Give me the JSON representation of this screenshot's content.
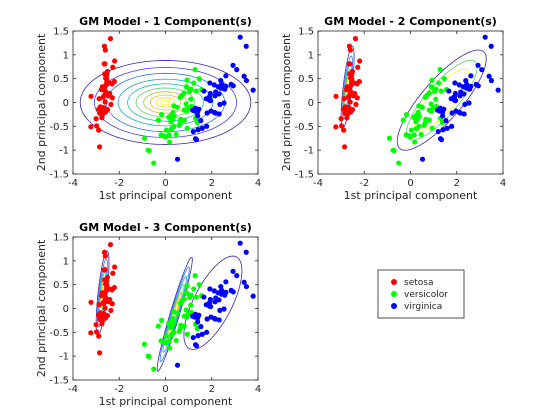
{
  "colors": {
    "setosa": "#ff0000",
    "versicolor": "#00ff00",
    "virginica": "#0000ff",
    "contours": [
      "#3e26a8",
      "#4743f2",
      "#2f77fb",
      "#1ba4e0",
      "#1ec2a5",
      "#62cc6b",
      "#b8c03a",
      "#f2b83b",
      "#f5d82b",
      "#f9fb15"
    ]
  },
  "chart_data": [
    {
      "type": "scatter",
      "title": "GM Model - 1 Component(s)",
      "xlabel": "1st principal component",
      "ylabel": "2nd principal component",
      "xlim": [
        -4,
        4
      ],
      "ylim": [
        -1.5,
        1.5
      ],
      "xticks": [
        "-4",
        "-2",
        "0",
        "2",
        "4"
      ],
      "yticks": [
        "-1.5",
        "-1",
        "-0.5",
        "0",
        "0.5",
        "1",
        "1.5"
      ],
      "components": [
        {
          "center": [
            0,
            0
          ],
          "sx": 2.05,
          "sy": 0.49,
          "angle": 0,
          "levels": [
            1.8,
            1.5,
            1.25,
            1.0,
            0.8,
            0.62,
            0.46,
            0.32,
            0.2,
            0.1
          ]
        }
      ]
    },
    {
      "type": "scatter",
      "title": "GM Model - 2 Component(s)",
      "xlabel": "1st principal component",
      "ylabel": "2nd principal component",
      "xlim": [
        -4,
        4
      ],
      "ylim": [
        -1.5,
        1.5
      ],
      "xticks": [
        "-4",
        "-2",
        "0",
        "2",
        "4"
      ],
      "yticks": [
        "-1.5",
        "-1",
        "-0.5",
        "0",
        "0.5",
        "1",
        "1.5"
      ],
      "components": [
        {
          "center": [
            -2.72,
            0.32
          ],
          "sx": 0.52,
          "sy": 0.11,
          "angle": 76,
          "levels": [
            1.7,
            1.3,
            1.0,
            0.75,
            0.5,
            0.3
          ]
        },
        {
          "center": [
            1.35,
            0.05
          ],
          "sx": 1.25,
          "sy": 0.32,
          "angle": 26,
          "levels": [
            1.7,
            1.35,
            1.05
          ]
        }
      ]
    },
    {
      "type": "scatter",
      "title": "GM Model - 3 Component(s)",
      "xlabel": "1st principal component",
      "ylabel": "2nd principal component",
      "xlim": [
        -4,
        4
      ],
      "ylim": [
        -1.5,
        1.5
      ],
      "xticks": [
        "-4",
        "-2",
        "0",
        "2",
        "4"
      ],
      "yticks": [
        "-1.5",
        "-1",
        "-0.5",
        "0",
        "0.5",
        "1",
        "1.5"
      ],
      "components": [
        {
          "center": [
            -2.72,
            0.32
          ],
          "sx": 0.52,
          "sy": 0.11,
          "angle": 77,
          "levels": [
            1.75,
            1.4,
            1.1,
            0.85,
            0.62,
            0.42,
            0.25
          ]
        },
        {
          "center": [
            0.4,
            -0.12
          ],
          "sx": 0.78,
          "sy": 0.1,
          "angle": 58,
          "levels": [
            1.8,
            1.5,
            1.2,
            0.95,
            0.7,
            0.5,
            0.3
          ]
        },
        {
          "center": [
            2.05,
            0.12
          ],
          "sx": 0.92,
          "sy": 0.38,
          "angle": 35,
          "levels": [
            1.6
          ]
        }
      ]
    }
  ],
  "legend": {
    "entries": [
      {
        "label": "setosa",
        "color": "#ff0000"
      },
      {
        "label": "versicolor",
        "color": "#00ff00"
      },
      {
        "label": "virginica",
        "color": "#0000ff"
      }
    ]
  },
  "series": [
    {
      "name": "setosa",
      "points": [
        [
          -2.68,
          0.32
        ],
        [
          -2.71,
          -0.18
        ],
        [
          -2.89,
          -0.14
        ],
        [
          -2.75,
          -0.32
        ],
        [
          -2.73,
          0.33
        ],
        [
          -2.28,
          0.74
        ],
        [
          -2.82,
          -0.09
        ],
        [
          -2.63,
          0.16
        ],
        [
          -2.89,
          -0.58
        ],
        [
          -2.67,
          -0.11
        ],
        [
          -2.51,
          0.65
        ],
        [
          -2.61,
          0.01
        ],
        [
          -2.79,
          -0.24
        ],
        [
          -3.23,
          -0.51
        ],
        [
          -2.64,
          1.18
        ],
        [
          -2.38,
          1.34
        ],
        [
          -2.62,
          0.81
        ],
        [
          -2.65,
          0.31
        ],
        [
          -2.2,
          0.87
        ],
        [
          -2.59,
          0.51
        ],
        [
          -2.31,
          0.39
        ],
        [
          -2.54,
          0.43
        ],
        [
          -3.22,
          0.13
        ],
        [
          -2.3,
          0.1
        ],
        [
          -2.36,
          -0.04
        ],
        [
          -2.51,
          -0.15
        ],
        [
          -2.47,
          0.14
        ],
        [
          -2.56,
          0.37
        ],
        [
          -2.64,
          0.31
        ],
        [
          -2.63,
          -0.19
        ],
        [
          -2.59,
          -0.2
        ],
        [
          -2.41,
          0.41
        ],
        [
          -2.65,
          0.81
        ],
        [
          -2.6,
          1.1
        ],
        [
          -2.67,
          -0.11
        ],
        [
          -2.87,
          0.08
        ],
        [
          -2.63,
          0.6
        ],
        [
          -2.67,
          -0.11
        ],
        [
          -2.98,
          -0.49
        ],
        [
          -2.59,
          0.23
        ],
        [
          -2.77,
          0.27
        ],
        [
          -2.85,
          -0.93
        ],
        [
          -3.0,
          -0.34
        ],
        [
          -2.41,
          0.19
        ],
        [
          -2.21,
          0.44
        ],
        [
          -2.72,
          -0.25
        ],
        [
          -2.54,
          0.5
        ],
        [
          -2.84,
          -0.23
        ],
        [
          -2.54,
          0.58
        ],
        [
          -2.7,
          0.11
        ]
      ]
    },
    {
      "name": "versicolor",
      "points": [
        [
          1.28,
          0.69
        ],
        [
          0.93,
          0.32
        ],
        [
          1.46,
          0.5
        ],
        [
          0.18,
          -0.83
        ],
        [
          1.09,
          0.07
        ],
        [
          0.64,
          -0.42
        ],
        [
          1.1,
          0.28
        ],
        [
          -0.75,
          -1.0
        ],
        [
          1.04,
          0.23
        ],
        [
          -0.01,
          -0.72
        ],
        [
          -0.51,
          -1.27
        ],
        [
          0.51,
          -0.1
        ],
        [
          0.26,
          -0.55
        ],
        [
          0.98,
          -0.12
        ],
        [
          -0.17,
          -0.25
        ],
        [
          0.93,
          0.47
        ],
        [
          0.66,
          -0.35
        ],
        [
          0.23,
          -0.33
        ],
        [
          0.94,
          -0.54
        ],
        [
          0.04,
          -0.58
        ],
        [
          1.12,
          -0.08
        ],
        [
          0.36,
          -0.07
        ],
        [
          1.3,
          -0.33
        ],
        [
          0.92,
          -0.18
        ],
        [
          0.71,
          0.15
        ],
        [
          0.9,
          0.33
        ],
        [
          1.33,
          0.24
        ],
        [
          1.56,
          0.27
        ],
        [
          0.81,
          -0.16
        ],
        [
          -0.31,
          -0.37
        ],
        [
          -0.07,
          -0.7
        ],
        [
          -0.19,
          -0.68
        ],
        [
          0.14,
          -0.31
        ],
        [
          1.38,
          -0.42
        ],
        [
          0.59,
          -0.48
        ],
        [
          0.81,
          0.2
        ],
        [
          1.22,
          0.41
        ],
        [
          0.81,
          -0.37
        ],
        [
          0.25,
          -0.27
        ],
        [
          0.16,
          -0.68
        ],
        [
          0.46,
          -0.67
        ],
        [
          0.89,
          -0.03
        ],
        [
          0.23,
          -0.4
        ],
        [
          -0.71,
          -1.01
        ],
        [
          0.36,
          -0.5
        ],
        [
          0.33,
          -0.21
        ],
        [
          0.38,
          -0.29
        ],
        [
          0.64,
          0.11
        ],
        [
          -0.91,
          -0.75
        ],
        [
          0.3,
          -0.35
        ]
      ]
    },
    {
      "name": "virginica",
      "points": [
        [
          2.53,
          -0.01
        ],
        [
          1.41,
          -0.57
        ],
        [
          2.61,
          0.34
        ],
        [
          1.97,
          -0.18
        ],
        [
          2.35,
          -0.04
        ],
        [
          3.4,
          0.55
        ],
        [
          0.52,
          -1.19
        ],
        [
          2.93,
          0.35
        ],
        [
          2.32,
          -0.24
        ],
        [
          2.92,
          0.78
        ],
        [
          1.66,
          0.24
        ],
        [
          1.8,
          -0.22
        ],
        [
          2.17,
          0.22
        ],
        [
          1.34,
          -0.78
        ],
        [
          1.59,
          -0.54
        ],
        [
          1.9,
          0.12
        ],
        [
          1.95,
          0.04
        ],
        [
          3.49,
          1.18
        ],
        [
          3.79,
          0.26
        ],
        [
          1.3,
          -0.76
        ],
        [
          2.43,
          0.38
        ],
        [
          1.2,
          -0.61
        ],
        [
          3.5,
          0.46
        ],
        [
          1.39,
          -0.2
        ],
        [
          2.28,
          0.33
        ],
        [
          2.61,
          0.56
        ],
        [
          1.26,
          -0.18
        ],
        [
          1.29,
          -0.12
        ],
        [
          2.12,
          -0.21
        ],
        [
          2.39,
          0.46
        ],
        [
          2.84,
          0.38
        ],
        [
          3.23,
          1.37
        ],
        [
          2.16,
          -0.22
        ],
        [
          1.44,
          -0.14
        ],
        [
          1.78,
          -0.5
        ],
        [
          3.08,
          0.69
        ],
        [
          2.14,
          0.14
        ],
        [
          1.9,
          0.05
        ],
        [
          1.17,
          -0.16
        ],
        [
          2.11,
          0.37
        ],
        [
          2.31,
          0.18
        ],
        [
          1.92,
          0.41
        ],
        [
          1.41,
          -0.57
        ],
        [
          2.56,
          0.28
        ],
        [
          2.42,
          0.3
        ],
        [
          1.94,
          0.19
        ],
        [
          1.53,
          -0.38
        ],
        [
          1.76,
          0.08
        ],
        [
          1.9,
          0.12
        ],
        [
          1.39,
          -0.28
        ]
      ]
    }
  ]
}
